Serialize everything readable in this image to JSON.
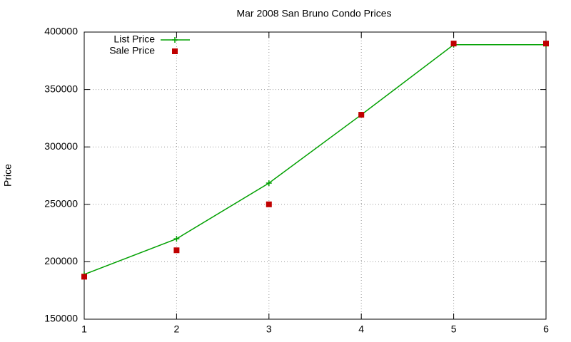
{
  "chart_data": {
    "type": "line",
    "title": "Mar 2008 San Bruno Condo Prices",
    "y_label": "Price",
    "x": [
      1,
      2,
      3,
      4,
      5,
      6
    ],
    "series": [
      {
        "name": "List Price",
        "color": "#00a000",
        "style": "linespoints",
        "marker": "plus",
        "values": [
          189000,
          220000,
          268500,
          328000,
          389000,
          389000
        ]
      },
      {
        "name": "Sale Price",
        "color": "#c00000",
        "style": "points",
        "marker": "square",
        "values": [
          187000,
          210000,
          250000,
          328000,
          390000,
          390000
        ]
      }
    ],
    "xlim": [
      1,
      6
    ],
    "xticks": [
      1,
      2,
      3,
      4,
      5,
      6
    ],
    "ylim": [
      150000,
      400000
    ],
    "yticks": [
      150000,
      200000,
      250000,
      300000,
      350000,
      400000
    ],
    "grid": true,
    "legend": "top-left"
  }
}
